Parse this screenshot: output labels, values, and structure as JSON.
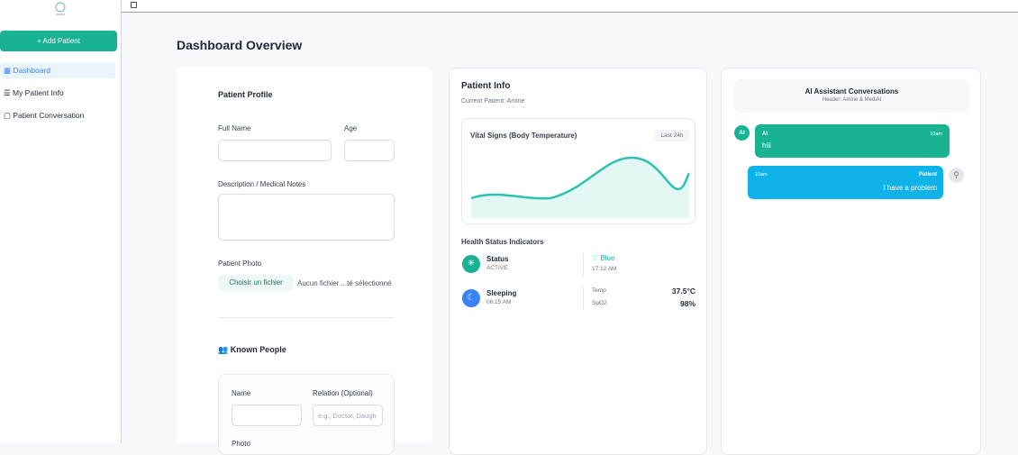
{
  "sidebar": {
    "add_button": "+ Add Patient",
    "nav": [
      "Dashboard",
      "My Patient Info",
      "Patient Conversation"
    ]
  },
  "main": {
    "title": "Dashboard Overview",
    "profile": {
      "title": "Patient Profile",
      "full_name_label": "Full Name",
      "age_label": "Age",
      "notes_label": "Description / Medical Notes",
      "photo_label": "Patient Photo",
      "file_button": "Choisir un fichier",
      "file_status": "Aucun fichier ...té sélectionné",
      "known_people": {
        "title": "Known People",
        "name_label": "Name",
        "relation_label": "Relation (Optional)",
        "relation_placeholder": "e.g., Doctor, Daugh",
        "photo_label": "Photo"
      }
    },
    "patient_info": {
      "title": "Patient Info",
      "subtitle": "Current Patient: Amine",
      "vitals": {
        "title": "Vital Signs (Body Temperature)",
        "badge": "Last 24h"
      },
      "health": {
        "title": "Health Status Indicators",
        "status_label": "Status",
        "status_value": "ACTIVE",
        "color_label": "Blue",
        "color_time": "17:12 AM",
        "activity": "Sleeping",
        "activity_time": "06:15 AM",
        "temp_label": "Temp",
        "temp_value": "37.5°C",
        "spo2_label": "SpO2",
        "spo2_value": "98%"
      }
    },
    "conversation": {
      "title": "AI Assistant Conversations",
      "subtitle": "Header: Amine & MediAI",
      "messages": [
        {
          "avatar": "AI",
          "sender": "AI",
          "time": "10am",
          "text": "hiii"
        },
        {
          "sender": "Patient",
          "time": "10am",
          "text": "I have a problem"
        }
      ]
    }
  }
}
